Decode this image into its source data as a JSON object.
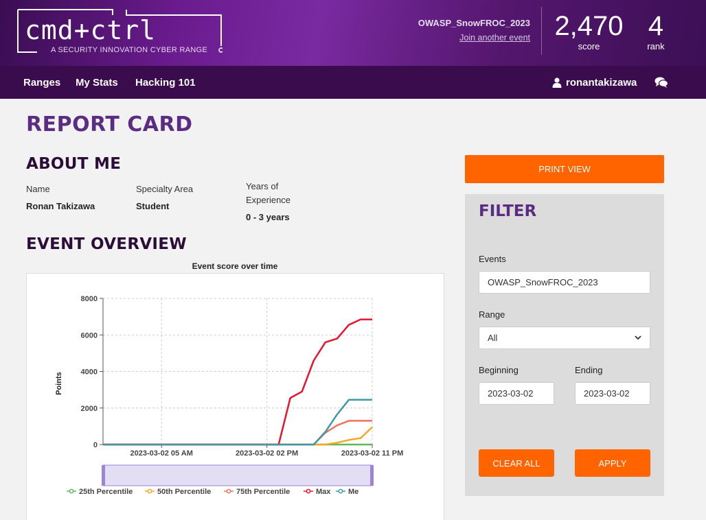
{
  "header": {
    "logo_text": "cmd+ctrl",
    "logo_tagline": "A SECURITY INNOVATION CYBER RANGE",
    "event_name": "OWASP_SnowFROC_2023",
    "join_link": "Join another event",
    "score_value": "2,470",
    "score_label": "score",
    "rank_value": "4",
    "rank_label": "rank"
  },
  "nav": {
    "items": [
      "Ranges",
      "My Stats",
      "Hacking 101"
    ],
    "username": "ronantakizawa"
  },
  "page": {
    "title": "REPORT CARD",
    "about_title": "ABOUT ME",
    "name_label": "Name",
    "name_value": "Ronan Takizawa",
    "specialty_label": "Specialty Area",
    "specialty_value": "Student",
    "experience_label_1": "Years of",
    "experience_label_2": "Experience",
    "experience_value": "0 - 3 years",
    "overview_title": "EVENT OVERVIEW"
  },
  "sidebar": {
    "print_label": "PRINT VIEW",
    "filter_title": "FILTER",
    "events_label": "Events",
    "events_value": "OWASP_SnowFROC_2023",
    "range_label": "Range",
    "range_value": "All",
    "beginning_label": "Beginning",
    "beginning_value": "2023-03-02",
    "ending_label": "Ending",
    "ending_value": "2023-03-02",
    "clear_label": "CLEAR ALL",
    "apply_label": "APPLY"
  },
  "colors": {
    "accent": "#ff6400",
    "title_purple": "#5a2d82",
    "nav_bg": "#3a0c4e"
  },
  "chart_data": {
    "type": "line",
    "title": "Event score over time",
    "ylabel": "Points",
    "ylim": [
      0,
      8000
    ],
    "yticks": [
      0,
      2000,
      4000,
      6000,
      8000
    ],
    "x_tick_labels": [
      "2023-03-02 05 AM",
      "2023-03-02 02 PM",
      "2023-03-02 11 PM"
    ],
    "x": [
      "00:00",
      "01:00",
      "02:00",
      "03:00",
      "04:00",
      "05:00",
      "06:00",
      "07:00",
      "08:00",
      "09:00",
      "10:00",
      "11:00",
      "12:00",
      "13:00",
      "14:00",
      "15:00",
      "16:00",
      "17:00",
      "18:00",
      "19:00",
      "20:00",
      "21:00",
      "22:00",
      "23:00"
    ],
    "series": [
      {
        "name": "25th Percentile",
        "color": "#5cb85c",
        "values": [
          0,
          0,
          0,
          0,
          0,
          0,
          0,
          0,
          0,
          0,
          0,
          0,
          0,
          0,
          0,
          0,
          0,
          0,
          0,
          0,
          0,
          0,
          0,
          0
        ]
      },
      {
        "name": "50th Percentile",
        "color": "#f5a623",
        "values": [
          0,
          0,
          0,
          0,
          0,
          0,
          0,
          0,
          0,
          0,
          0,
          0,
          0,
          0,
          0,
          0,
          0,
          0,
          0,
          0,
          100,
          250,
          350,
          950
        ]
      },
      {
        "name": "75th Percentile",
        "color": "#f0705a",
        "values": [
          0,
          0,
          0,
          0,
          0,
          0,
          0,
          0,
          0,
          0,
          0,
          0,
          0,
          0,
          0,
          0,
          0,
          0,
          0,
          650,
          1050,
          1300,
          1300,
          1300
        ]
      },
      {
        "name": "Max",
        "color": "#e8132e",
        "values": [
          0,
          0,
          0,
          0,
          0,
          0,
          0,
          0,
          0,
          0,
          0,
          0,
          0,
          0,
          0,
          0,
          2550,
          2900,
          4600,
          5600,
          5800,
          6550,
          6850,
          6850
        ]
      },
      {
        "name": "Me",
        "color": "#3c9aa8",
        "values": [
          0,
          0,
          0,
          0,
          0,
          0,
          0,
          0,
          0,
          0,
          0,
          0,
          0,
          0,
          0,
          0,
          0,
          0,
          0,
          700,
          1650,
          2450,
          2450,
          2450
        ]
      }
    ],
    "legend": "bottom"
  }
}
